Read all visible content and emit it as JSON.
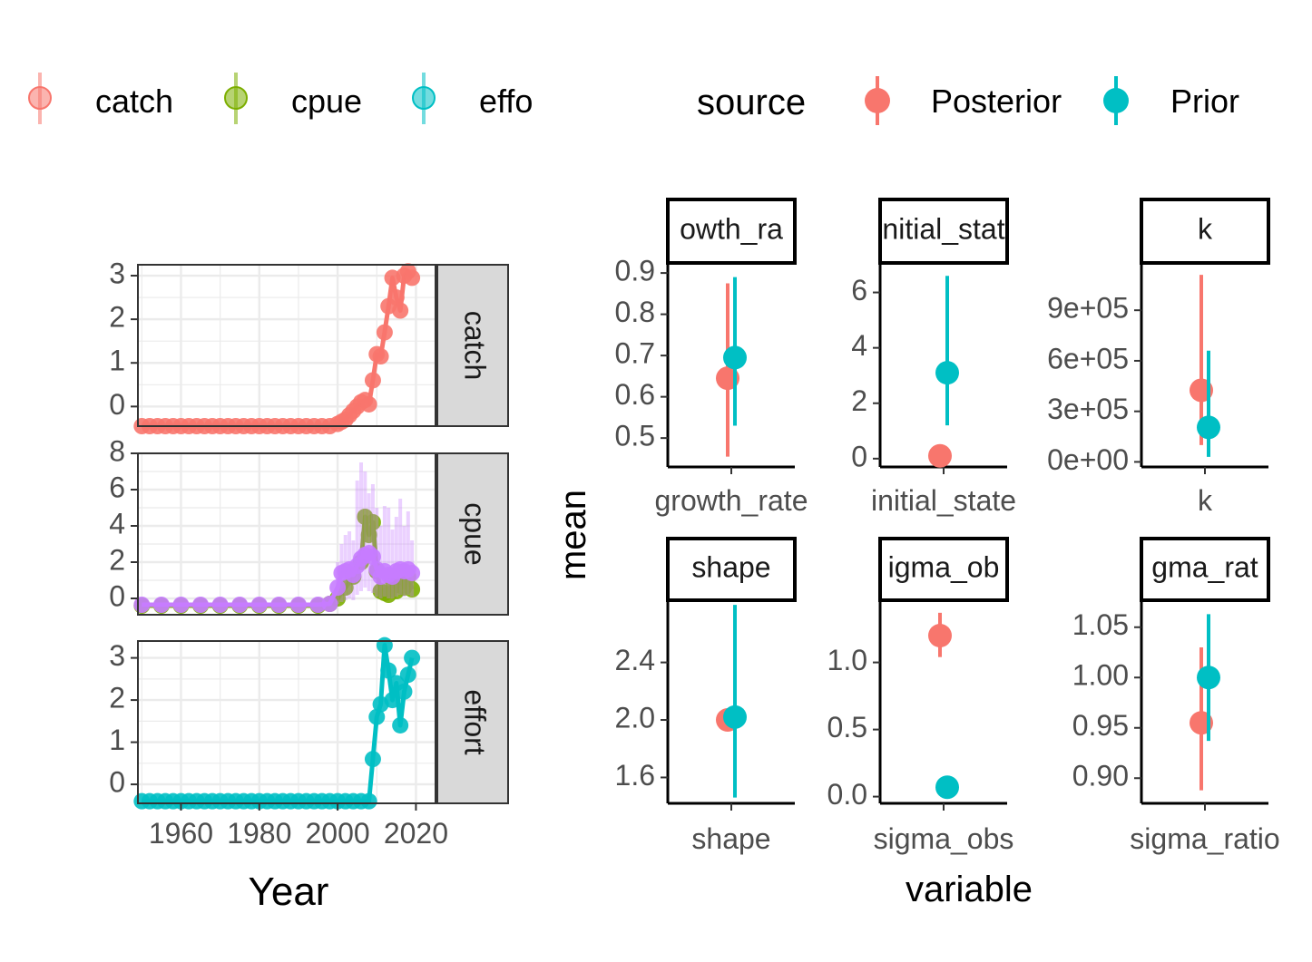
{
  "colors": {
    "catch": "#F8766D",
    "cpue": "#7CAE00",
    "effort": "#00BFC4",
    "cpue_alt": "#C77CFF",
    "posterior": "#F8766D",
    "prior": "#00BFC4",
    "grid": "#EBEBEB",
    "strip_fill": "#D9D9D9",
    "axis_text": "#4D4D4D"
  },
  "left_legend": {
    "entries": [
      "catch",
      "cpue",
      "effo"
    ]
  },
  "right_legend": {
    "title": "source",
    "entries": [
      "Posterior",
      "Prior"
    ]
  },
  "chart_data": [
    {
      "type": "line",
      "panel": "time_series",
      "xlabel": "Year",
      "ylabel": "",
      "xlim": [
        1949,
        2025
      ],
      "x_ticks": [
        1960,
        1980,
        2000,
        2020
      ],
      "x_tick_labels": [
        "1960",
        "1980",
        "2000",
        "2020"
      ],
      "facets": [
        {
          "strip": "catch",
          "ylim": [
            -0.45,
            3.25
          ],
          "y_ticks": [
            0,
            1,
            2,
            3
          ],
          "series": [
            {
              "name": "catch",
              "x": [
                1950,
                1952,
                1954,
                1956,
                1958,
                1960,
                1962,
                1964,
                1966,
                1968,
                1970,
                1972,
                1974,
                1976,
                1978,
                1980,
                1982,
                1984,
                1986,
                1988,
                1990,
                1992,
                1994,
                1996,
                1998,
                2000,
                2001,
                2002,
                2003,
                2004,
                2005,
                2006,
                2007,
                2008,
                2009,
                2010,
                2011,
                2012,
                2013,
                2014,
                2015,
                2016,
                2017,
                2018,
                2019
              ],
              "y": [
                -0.45,
                -0.45,
                -0.45,
                -0.45,
                -0.45,
                -0.45,
                -0.45,
                -0.45,
                -0.45,
                -0.45,
                -0.45,
                -0.45,
                -0.45,
                -0.45,
                -0.45,
                -0.45,
                -0.45,
                -0.45,
                -0.45,
                -0.45,
                -0.45,
                -0.45,
                -0.45,
                -0.45,
                -0.45,
                -0.4,
                -0.35,
                -0.3,
                -0.2,
                -0.1,
                0.0,
                0.1,
                0.15,
                0.05,
                0.6,
                1.2,
                1.15,
                1.7,
                2.3,
                2.95,
                2.5,
                2.2,
                3.0,
                3.1,
                2.95
              ]
            }
          ]
        },
        {
          "strip": "cpue",
          "ylim": [
            -0.9,
            8.0
          ],
          "y_ticks": [
            0,
            2,
            4,
            6,
            8
          ],
          "series": [
            {
              "name": "cpue",
              "x": [
                1950,
                1955,
                1960,
                1965,
                1970,
                1975,
                1980,
                1985,
                1990,
                1995,
                1998,
                2000,
                2002,
                2004,
                2006,
                2007,
                2008,
                2009,
                2010,
                2011,
                2012,
                2013,
                2014,
                2015,
                2016,
                2017,
                2018,
                2019
              ],
              "y": [
                -0.4,
                -0.4,
                -0.4,
                -0.4,
                -0.4,
                -0.4,
                -0.4,
                -0.4,
                -0.4,
                -0.4,
                -0.3,
                0.0,
                0.6,
                1.2,
                2.0,
                4.5,
                3.5,
                4.2,
                1.5,
                0.4,
                0.3,
                0.2,
                1.0,
                0.4,
                1.2,
                0.6,
                1.2,
                0.5
              ]
            },
            {
              "name": "cpue_alt",
              "x": [
                1950,
                1955,
                1960,
                1965,
                1970,
                1975,
                1980,
                1985,
                1990,
                1995,
                1998,
                2000,
                2001,
                2002,
                2003,
                2004,
                2005,
                2006,
                2007,
                2008,
                2009,
                2010,
                2011,
                2012,
                2013,
                2014,
                2015,
                2016,
                2017,
                2018,
                2019
              ],
              "y": [
                -0.35,
                -0.35,
                -0.35,
                -0.35,
                -0.35,
                -0.35,
                -0.35,
                -0.35,
                -0.35,
                -0.35,
                -0.3,
                0.6,
                1.4,
                1.5,
                1.6,
                1.3,
                1.8,
                2.2,
                2.4,
                2.5,
                2.3,
                1.6,
                1.2,
                1.5,
                1.3,
                1.2,
                1.5,
                1.6,
                1.5,
                1.6,
                1.4
              ],
              "band_low": [
                -0.35,
                -0.35,
                -0.35,
                -0.35,
                -0.35,
                -0.35,
                -0.35,
                -0.35,
                -0.35,
                -0.35,
                -0.3,
                -0.3,
                -0.2,
                -0.1,
                0.0,
                -0.1,
                0.2,
                0.4,
                0.6,
                0.4,
                0.3,
                0.1,
                0.0,
                0.1,
                0.0,
                0.0,
                0.1,
                0.2,
                0.1,
                0.2,
                0.1
              ],
              "band_high": [
                -0.35,
                -0.35,
                -0.35,
                -0.35,
                -0.35,
                -0.35,
                -0.35,
                -0.35,
                -0.35,
                -0.35,
                -0.25,
                2.0,
                3.0,
                3.5,
                3.7,
                3.2,
                6.5,
                7.5,
                7.0,
                5.8,
                6.3,
                5.0,
                4.0,
                5.1,
                5.0,
                3.8,
                4.5,
                5.5,
                4.0,
                4.8,
                3.2
              ]
            }
          ]
        },
        {
          "strip": "effort",
          "ylim": [
            -0.45,
            3.4
          ],
          "y_ticks": [
            0,
            1,
            2,
            3
          ],
          "series": [
            {
              "name": "effort",
              "x": [
                1950,
                1952,
                1954,
                1956,
                1958,
                1960,
                1962,
                1964,
                1966,
                1968,
                1970,
                1972,
                1974,
                1976,
                1978,
                1980,
                1982,
                1984,
                1986,
                1988,
                1990,
                1992,
                1994,
                1996,
                1998,
                2000,
                2002,
                2004,
                2006,
                2008,
                2009,
                2010,
                2011,
                2012,
                2013,
                2014,
                2015,
                2016,
                2017,
                2018,
                2019
              ],
              "y": [
                -0.4,
                -0.4,
                -0.4,
                -0.4,
                -0.4,
                -0.4,
                -0.4,
                -0.4,
                -0.4,
                -0.4,
                -0.4,
                -0.4,
                -0.4,
                -0.4,
                -0.4,
                -0.4,
                -0.4,
                -0.4,
                -0.4,
                -0.4,
                -0.4,
                -0.4,
                -0.4,
                -0.4,
                -0.4,
                -0.4,
                -0.4,
                -0.4,
                -0.4,
                -0.4,
                0.6,
                1.6,
                1.9,
                3.3,
                2.7,
                2.0,
                2.4,
                1.4,
                2.2,
                2.6,
                3.0
              ]
            }
          ]
        }
      ]
    },
    {
      "type": "scatter",
      "panel": "parameters",
      "xlabel": "variable",
      "ylabel": "mean",
      "facets": [
        {
          "strip": "owth_ra",
          "x_label": "growth_rate",
          "ylim": [
            0.43,
            0.92
          ],
          "y_ticks": [
            0.5,
            0.6,
            0.7,
            0.8,
            0.9
          ],
          "y_tick_labels": [
            "0.5",
            "0.6",
            "0.7",
            "0.8",
            "0.9"
          ],
          "posterior": {
            "mean": 0.645,
            "low": 0.455,
            "high": 0.875
          },
          "prior": {
            "mean": 0.695,
            "low": 0.53,
            "high": 0.89
          }
        },
        {
          "strip": "nitial_stat",
          "x_label": "initial_state",
          "ylim": [
            -0.3,
            7.0
          ],
          "y_ticks": [
            0,
            2,
            4,
            6
          ],
          "y_tick_labels": [
            "0",
            "2",
            "4",
            "6"
          ],
          "posterior": {
            "mean": 0.1,
            "low": 0.0,
            "high": 0.2
          },
          "prior": {
            "mean": 3.1,
            "low": 1.2,
            "high": 6.6
          }
        },
        {
          "strip": "k",
          "x_label": "k",
          "ylim": [
            -30000,
            1170000
          ],
          "y_ticks": [
            0,
            300000,
            600000,
            900000
          ],
          "y_tick_labels": [
            "0e+00",
            "3e+05",
            "6e+05",
            "9e+05"
          ],
          "posterior": {
            "mean": 425000,
            "low": 100000,
            "high": 1110000
          },
          "prior": {
            "mean": 205000,
            "low": 30000,
            "high": 660000
          }
        },
        {
          "strip": "shape",
          "x_label": "shape",
          "ylim": [
            1.42,
            2.82
          ],
          "y_ticks": [
            1.6,
            2.0,
            2.4
          ],
          "y_tick_labels": [
            "1.6",
            "2.0",
            "2.4"
          ],
          "posterior": {
            "mean": 2.0,
            "low": 1.99,
            "high": 2.01
          },
          "prior": {
            "mean": 2.02,
            "low": 1.46,
            "high": 2.8
          }
        },
        {
          "strip": "igma_ob",
          "x_label": "sigma_obs",
          "ylim": [
            -0.05,
            1.45
          ],
          "y_ticks": [
            0.0,
            0.5,
            1.0
          ],
          "y_tick_labels": [
            "0.0",
            "0.5",
            "1.0"
          ],
          "posterior": {
            "mean": 1.2,
            "low": 1.04,
            "high": 1.37
          },
          "prior": {
            "mean": 0.07,
            "low": 0.05,
            "high": 0.09
          }
        },
        {
          "strip": "gma_rat",
          "x_label": "sigma_ratio",
          "ylim": [
            0.875,
            1.075
          ],
          "y_ticks": [
            0.9,
            0.95,
            1.0,
            1.05
          ],
          "y_tick_labels": [
            "0.90",
            "0.95",
            "1.00",
            "1.05"
          ],
          "posterior": {
            "mean": 0.955,
            "low": 0.888,
            "high": 1.03
          },
          "prior": {
            "mean": 1.0,
            "low": 0.937,
            "high": 1.063
          }
        }
      ]
    }
  ]
}
